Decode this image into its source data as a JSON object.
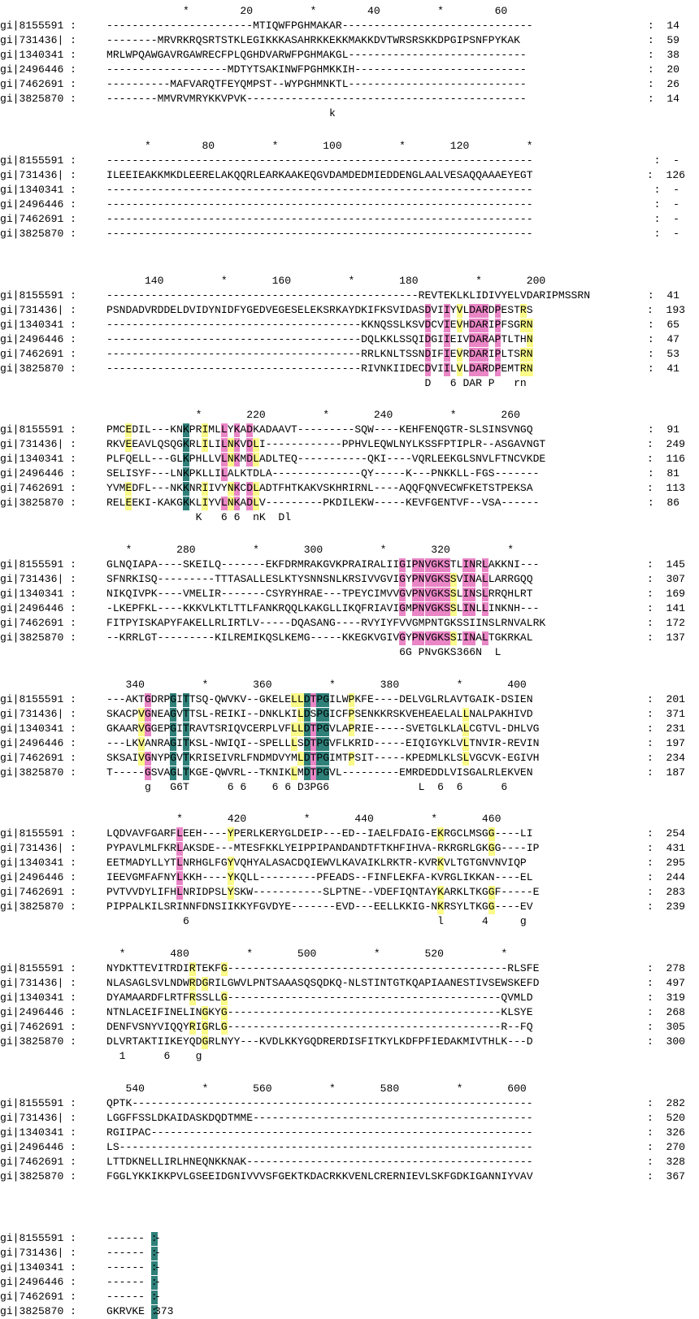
{
  "colors": {
    "high": "#2f8079",
    "mid": "#ea86c6",
    "low": "#fafa88",
    "text_on_high": "#ffffff",
    "background": "#ffffff"
  },
  "names": [
    "gi|8155591 :",
    "gi|731436| :",
    "gi|1340341 :",
    "gi|2496446 :",
    "gi|7462691 :",
    "gi|3825870 :"
  ],
  "blocks": [
    {
      "ruler": "            *        20         *        40         *        60",
      "ends": [
        "14",
        "59",
        "38",
        "20",
        "26",
        "14"
      ],
      "seqs": [
        "-----------------------MTIQWFPGHMAKAR------------------------------",
        "--------MRVRKRQSRTSTKLEGIKKKASAHRKKEKKMAKKDVTWRSRSKKDPGIPSNFPYKAK",
        "MRLWPQAWGAVRGAWRECFPLQGHDVARWFPGHMAKGL----------------------------",
        "-------------------MDTYTSAKINWFPGHMKKIH---------------------------",
        "----------MAFVARQTFEYQMPST--WYPGHMNKTL----------------------------",
        "--------MMVRVMRYKKVPVK--------------------------------------------"
      ],
      "consensus": "                                   k"
    },
    {
      "ruler": "      *        80         *       100         *       120         *",
      "ends": [
        "-",
        "126",
        "-",
        "-",
        "-",
        "-"
      ],
      "seqs": [
        "-------------------------------------------------------------------",
        "ILEEIEAKKMKDLEERELAKQQRLEARKAAKEQGVDAMDEDMIEDDENGLAALVESAQQAAAEYEGT",
        "-------------------------------------------------------------------",
        "-------------------------------------------------------------------",
        "-------------------------------------------------------------------",
        "-------------------------------------------------------------------"
      ],
      "consensus": ""
    },
    {
      "ruler": "      140         *       160         *       180         *       200",
      "ends": [
        "41",
        "193",
        "65",
        "47",
        "53",
        "41"
      ],
      "seqs": [
        "-------------------------------------------------REVTEKLKLIDIVYELVDARIPMSSRN",
        "PSNDADVRDDELDVIDYNIDFYGEDVEGESELEKSRKAYDKIFKSVIDASDVIIYVLDARDPESTRS",
        "----------------------------------------KKNQSSLKSVDCVIEVHDARIPFSGRN",
        "----------------------------------------DQLKKLSSQIDGIIEIVDARAPTLTHN",
        "----------------------------------------RRLKNLTSSNDIFIEVRDARIPLTSRN",
        "----------------------------------------RIVNKIIDECDVIILVLDARDPEMTRN"
      ],
      "consensus": "                                                  D   6 DAR P   rn"
    },
    {
      "ruler": "              *       220         *       240         *       260",
      "ends": [
        "91",
        "249",
        "116",
        "81",
        "113",
        "86"
      ],
      "seqs": [
        "PMCEDIL---KNKPRIMLLYKADKADAAVT---------SQW----KEHFENQGTR-SLSINSVNGQ",
        "RKVEEAVLQSQGKRLILILNKVDLI------------PPHVLEQWLNYLKSSFPTIPLR--ASGAVNGT",
        "PLFQELL---GLKPHLLVLNKMDLADLTEQ-----------QKI----VQRLEEKGLSNVLFTNCVKDE",
        "SELISYF---LNKPKLLILALKTDLA--------------QY-----K---PNKKLL-FGS-------",
        "YVMEDFL---NKKNRIIVYNKCDLADTFHTKAKVSKHRIRNL----AQQFQNVECWFKETSTPEKSA",
        "RELEEKI-KAKGKKLIYVLNKADLV---------PKDILEKW-----KEVFGENTVF--VSA------"
      ],
      "consensus": "              K   6 6  nK  Dl"
    },
    {
      "ruler": "   *       280         *       300         *       320         *",
      "ends": [
        "145",
        "307",
        "169",
        "141",
        "172",
        "137"
      ],
      "seqs": [
        "GLNQIAPA----SKEILQ-------EKFDRMRAKGVKPRAIRALIIGIPNVGKSTLINRLAKKNI---",
        "SFNRKISQ---------TTTASALLESLKTYSNNSNLKRSIVVGVIGYPNVGKSSVINALLARRGQQ",
        "NIKQIVPK----VMELIR-------CSYRYHRAE---TPEYCIMVVGVPNVGKSSLINSLRRQHLRT",
        "-LKEPFKL----KKKVLKTLTTLFANKRQQLKAKGLLIKQFRIAVIGMPNVGKSSLINLLINKNH---",
        "FITPYISKAPYFAKELLRLIRTLV-----DQASANG----RVYIYFVVGMPNTGKSSIINSLRNVALRK",
        "--KRRLGT---------KILREMIKQSLKEMG-----KKEGKVGIVGYPNVGKSSIINALTGKRKAL"
      ],
      "consensus": "                                              6G PNvGKS366N  L"
    },
    {
      "ruler": "   340         *       360         *       380         *       400",
      "ends": [
        "201",
        "371",
        "231",
        "197",
        "234",
        "187"
      ],
      "seqs": [
        "---AKTGDRPGITTSQ-QWVKV--GKELELLDTPGILWPKFE----DELVGLRLAVTGAIK-DSIEN",
        "SKACPVGNEAGVTTSL-REIKI--DNKLKILDSPGICFPSENKKRSKVEHEAELALLNALPAKHIVD",
        "GKAARVGGEPGITRAVTSRIQVCERPLVFLLDTPGVLAPRIE-----SVETGLKLALCGTVL-DHLVG",
        "---LKVANRAGITKSL-NWIQI--SPELLLSDTPGVFLKRID-----EIQIGYKLVLTNVIR-REVIN",
        "SKSAIVGNYPGVTKRISEIVRLFNDMDVYMLDTPGIMTPSIT-----KPEDMLKLSLVGCVK-EGIVH",
        "T-----GSVAGLTKGE-QWVRL--TKNIKLMDTPGVL---------EMRDEDDLVISGALRLEKVEN"
      ],
      "consensus": "      g   G6T      6 6    6 6 D3PG6              L  6  6      6"
    },
    {
      "ruler": "           *       420         *       440         *       460",
      "ends": [
        "254",
        "431",
        "295",
        "244",
        "283",
        "239"
      ],
      "seqs": [
        "LQDVAVFGARFLEEH----YPERLKERYGLDEIP---ED--IAELFDAIG-EKRGCLMSGG----LI",
        "PYPAVLMLFKRLAKSDE---MTESFKKLYEIPPIPANDANDTFTKHFIHVA-RKRGRLGKGG----IP",
        "EETMADYLLYTLNRHGLFGYVQHYALASACDQIEWVLKAVAIKLRKTR-KVRKVLTGTGNVNVIQP",
        "IEEVGMFAFNYLKKH----YKQLL---------PFEADS--FINFLEKFA-KVRGLIKKAN----EL",
        "PVTVVDYLIFHLNRIDPSLYSKW-----------SLPTNE--VDEFIQNTAYKARKLTKGGF-----E",
        "PIPPALKILSRINNFDNSIIKKYFGVDYE-------EVD---EELLKKIG-NKRSYLTKGG----EV"
      ],
      "consensus": "            6                                       l      4     g"
    },
    {
      "ruler": "  *       480         *       500         *       520         *",
      "ends": [
        "278",
        "497",
        "319",
        "268",
        "305",
        "300"
      ],
      "seqs": [
        "NYDKTTEVITRDIRTEKFG--------------------------------------------RLSFE",
        "NLASAGLSVLNDWRDGRILGWVLPNTSAAASQSQDKQ-NLSTINTGTKQAPIAANESTIVSEWSKEFD",
        "DYAMAARDFLRTFRSSLLG-------------------------------------------QVMLD",
        "NTNLACEIFINELINGKYG-------------------------------------------KLSYE",
        "DENFVSNYVIQQYRIGRLG-------------------------------------------R--FQ",
        "DLVRTAKTIIKEYQDGRLNYY---KVDLKKYGQDRERDISFITKYLKDFPFIEDAKMIVTHLK---D"
      ],
      "consensus": "  1      6    g"
    },
    {
      "ruler": "   540         *       560         *       580         *       600",
      "ends": [
        "282",
        "520",
        "326",
        "270",
        "328",
        "367"
      ],
      "seqs": [
        "QPTK---------------------------------------------------------------",
        "LGGFFSSLDKAIDASKDQDTMME--------------------------------------------",
        "RGIIPAC------------------------------------------------------------",
        "LS-----------------------------------------------------------------",
        "LTTDKNELLIRLHNEQNKKNAK---------------------------------------------",
        "FGGLYKKIKKPVLGSEEIDGNIVVVSFGEKTKDACRKKVENLCRERNIEVLSKFGDKIGANNIYVAV"
      ],
      "consensus": ""
    },
    {
      "ruler": "",
      "ends": [
        "-",
        "-",
        "-",
        "-",
        "-",
        "373"
      ],
      "seqs": [
        "------ :",
        "------ :",
        "------ :",
        "------ :",
        "------ :",
        "GKRVKE :"
      ],
      "consensus": ""
    }
  ]
}
